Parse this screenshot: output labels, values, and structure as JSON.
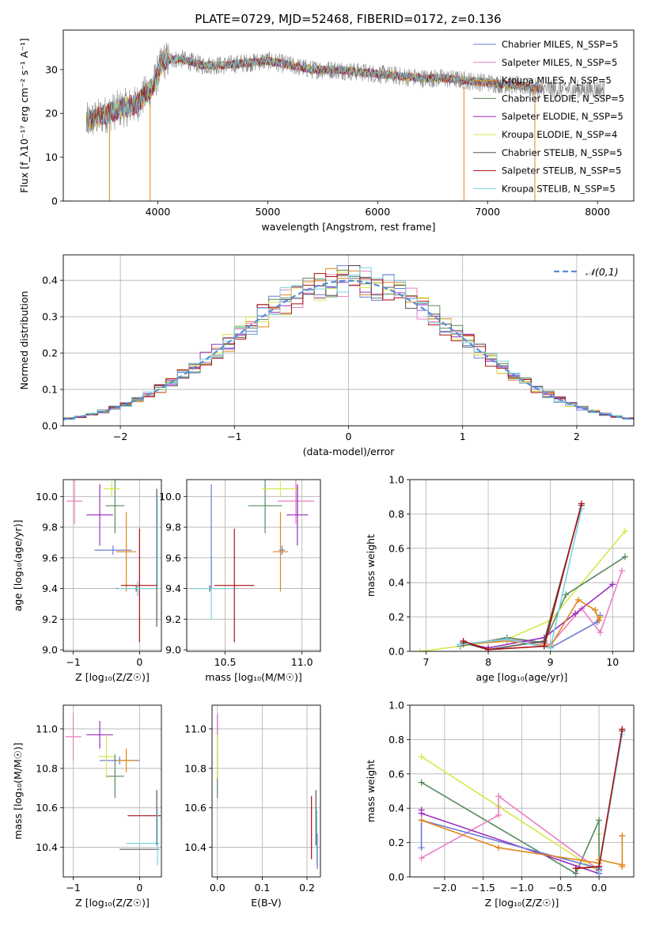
{
  "figure": {
    "title": "PLATE=0729, MJD=52468, FIBERID=0172, z=0.136"
  },
  "chart_data": [
    {
      "id": "spectrum",
      "type": "line",
      "xlabel": "wavelength [Angstrom, rest frame]",
      "ylabel": "Flux [f_λ10⁻¹⁷ erg cm⁻² s⁻¹ A⁻¹]",
      "xlim": [
        3140,
        8330
      ],
      "ylim": [
        0,
        39
      ],
      "xticks": [
        4000,
        5000,
        6000,
        7000,
        8000
      ],
      "yticks": [
        0,
        10,
        20,
        30
      ],
      "grid": false,
      "legend_position": "right",
      "series": [
        {
          "name": "Chabrier MILES, N_SSP=5",
          "color": "#6a7bd6"
        },
        {
          "name": "Salpeter MILES, N_SSP=5",
          "color": "#e87fc4"
        },
        {
          "name": "Kroupa MILES, N_SSP=5",
          "color": "#e0871c"
        },
        {
          "name": "Chabrier ELODIE, N_SSP=5",
          "color": "#5a8a5e"
        },
        {
          "name": "Salpeter ELODIE, N_SSP=5",
          "color": "#9b2dbf"
        },
        {
          "name": "Kroupa ELODIE, N_SSP=4",
          "color": "#d6e84d"
        },
        {
          "name": "Chabrier STELIB, N_SSP=5",
          "color": "#555555"
        },
        {
          "name": "Salpeter STELIB, N_SSP=5",
          "color": "#a81010"
        },
        {
          "name": "Kroupa STELIB, N_SSP=5",
          "color": "#79d2e0"
        }
      ],
      "spectrum_shape": {
        "x": [
          3350,
          3500,
          3650,
          3800,
          3950,
          4050,
          4200,
          4400,
          4600,
          4800,
          5000,
          5200,
          5400,
          5600,
          5800,
          6000,
          6200,
          6400,
          6600,
          6800,
          7000,
          7200,
          7400,
          7500
        ],
        "y": [
          18,
          19.5,
          21,
          22,
          26,
          32,
          32.5,
          31,
          31,
          31.5,
          32,
          31,
          30,
          30,
          29.5,
          29,
          28.5,
          28,
          28,
          27.5,
          27,
          26.5,
          26,
          25.5
        ]
      },
      "raw_data_color": "#888888",
      "raw_data_xrange": [
        3350,
        8070
      ]
    },
    {
      "id": "residuals",
      "type": "histogram",
      "xlabel": "(data-model)/error",
      "ylabel": "Normed distribution",
      "xlim": [
        -2.5,
        2.5
      ],
      "ylim": [
        0,
        0.47
      ],
      "xticks": [
        -2,
        -1,
        0,
        1,
        2
      ],
      "yticks": [
        0.0,
        0.1,
        0.2,
        0.3,
        0.4
      ],
      "grid": true,
      "legend": [
        {
          "name": "𝒩(0,1)",
          "color": "#5b8bd8",
          "style": "dashed"
        }
      ],
      "legend_position": "top-right",
      "bin_width": 0.1,
      "series_colors": [
        "#6a7bd6",
        "#e87fc4",
        "#e0871c",
        "#5a8a5e",
        "#9b2dbf",
        "#d6e84d",
        "#555555",
        "#a81010",
        "#79d2e0"
      ]
    },
    {
      "id": "age_vs_Z",
      "type": "scatter",
      "xlabel": "Z [log₁₀(Z/Z☉)]",
      "ylabel": "age  [log₁₀(age/yr)]",
      "xlim": [
        -1.15,
        0.33
      ],
      "ylim": [
        8.99,
        10.11
      ],
      "xticks": [
        -1,
        0
      ],
      "yticks": [
        9.0,
        9.2,
        9.4,
        9.6,
        9.8,
        10.0
      ],
      "grid": true,
      "points": [
        {
          "color": "#6a7bd6",
          "x": -0.4,
          "y": 9.65,
          "xerr": 0.28,
          "yerr": 0.03
        },
        {
          "color": "#e87fc4",
          "x": -0.98,
          "y": 9.97,
          "xerr": 0.12,
          "yerr": 0.15
        },
        {
          "color": "#e0871c",
          "x": -0.2,
          "y": 9.64,
          "xerr": 0.15,
          "yerr": 0.26
        },
        {
          "color": "#5a8a5e",
          "x": -0.37,
          "y": 9.94,
          "xerr": 0.14,
          "yerr": 0.18
        },
        {
          "color": "#9b2dbf",
          "x": -0.6,
          "y": 9.88,
          "xerr": 0.2,
          "yerr": 0.2
        },
        {
          "color": "#d6e84d",
          "x": -0.42,
          "y": 10.05,
          "xerr": 0.12,
          "yerr": 0.05
        },
        {
          "color": "#555555",
          "x": -0.05,
          "y": 9.4,
          "xerr": 0.3,
          "yerr": 0.02
        },
        {
          "color": "#a81010",
          "x": 0.0,
          "y": 9.42,
          "xerr": 0.28,
          "yerr": 0.37
        },
        {
          "color": "#79d2e0",
          "x": -0.03,
          "y": 9.4,
          "xerr": 0.3,
          "yerr": 0.05
        },
        {
          "color": "#555555",
          "x": 0.26,
          "y": 9.6,
          "xerr": 0.0,
          "yerr": 0.45
        },
        {
          "color": "#79d2e0",
          "x": 0.27,
          "y": 9.7,
          "xerr": 0.0,
          "yerr": 0.3
        }
      ]
    },
    {
      "id": "age_vs_mass",
      "type": "scatter",
      "xlabel": "mass [log₁₀(M/M☉)]",
      "ylabel": "",
      "xlim": [
        10.25,
        11.12
      ],
      "ylim": [
        8.99,
        10.11
      ],
      "xticks": [
        10.5,
        11.0
      ],
      "yticks": [
        9.0,
        9.2,
        9.4,
        9.6,
        9.8,
        10.0
      ],
      "grid": true,
      "points": [
        {
          "color": "#6a7bd6",
          "x": 10.87,
          "y": 9.65,
          "xerr": 0.02,
          "yerr": 0.03
        },
        {
          "color": "#e87fc4",
          "x": 10.96,
          "y": 9.97,
          "xerr": 0.12,
          "yerr": 0.15
        },
        {
          "color": "#e0871c",
          "x": 10.86,
          "y": 9.64,
          "xerr": 0.05,
          "yerr": 0.26
        },
        {
          "color": "#5a8a5e",
          "x": 10.76,
          "y": 9.94,
          "xerr": 0.11,
          "yerr": 0.18
        },
        {
          "color": "#9b2dbf",
          "x": 10.97,
          "y": 9.88,
          "xerr": 0.07,
          "yerr": 0.2
        },
        {
          "color": "#d6e84d",
          "x": 10.86,
          "y": 10.05,
          "xerr": 0.12,
          "yerr": 0.05
        },
        {
          "color": "#555555",
          "x": 10.4,
          "y": 9.4,
          "xerr": 0.13,
          "yerr": 0.02
        },
        {
          "color": "#a81010",
          "x": 10.56,
          "y": 9.42,
          "xerr": 0.13,
          "yerr": 0.37
        },
        {
          "color": "#79d2e0",
          "x": 10.41,
          "y": 9.4,
          "xerr": 0.14,
          "yerr": 0.2
        },
        {
          "color": "#6a7bd6",
          "x": 10.41,
          "y": 9.74,
          "xerr": 0.0,
          "yerr": 0.34
        },
        {
          "color": "#9b2dbf",
          "x": 10.97,
          "y": 9.97,
          "xerr": 0.0,
          "yerr": 0.1
        }
      ]
    },
    {
      "id": "weight_vs_age",
      "type": "line",
      "xlabel": "age  [log₁₀(age/yr)]",
      "ylabel": "mass weight",
      "xlim": [
        6.74,
        10.34
      ],
      "ylim": [
        0,
        1.0
      ],
      "xticks": [
        7,
        8,
        9,
        10
      ],
      "yticks": [
        0.0,
        0.2,
        0.4,
        0.6,
        0.8,
        1.0
      ],
      "grid": true,
      "series": [
        {
          "color": "#d6e84d",
          "x": [
            6.9,
            7.55,
            8.3,
            9.0,
            10.2
          ],
          "y": [
            0.0,
            0.03,
            0.07,
            0.18,
            0.7
          ]
        },
        {
          "color": "#5a8a5e",
          "x": [
            7.55,
            8.3,
            8.9,
            9.25,
            10.2
          ],
          "y": [
            0.03,
            0.08,
            0.05,
            0.33,
            0.55
          ]
        },
        {
          "color": "#e87fc4",
          "x": [
            7.55,
            8.3,
            9.0,
            9.5,
            9.8,
            10.15
          ],
          "y": [
            0.04,
            0.07,
            0.04,
            0.25,
            0.11,
            0.47
          ]
        },
        {
          "color": "#9b2dbf",
          "x": [
            7.6,
            8.0,
            8.9,
            9.4,
            10.0
          ],
          "y": [
            0.05,
            0.02,
            0.08,
            0.22,
            0.39
          ]
        },
        {
          "color": "#6a7bd6",
          "x": [
            7.55,
            8.3,
            9.0,
            9.75,
            9.8
          ],
          "y": [
            0.04,
            0.07,
            0.02,
            0.17,
            0.21
          ]
        },
        {
          "color": "#e0871c",
          "x": [
            7.6,
            8.3,
            9.0,
            9.45,
            9.72,
            9.78,
            9.8
          ],
          "y": [
            0.04,
            0.06,
            0.03,
            0.3,
            0.24,
            0.18,
            0.2
          ]
        },
        {
          "color": "#555555",
          "x": [
            7.6,
            8.0,
            8.9,
            9.5
          ],
          "y": [
            0.05,
            0.01,
            0.06,
            0.85
          ]
        },
        {
          "color": "#79d2e0",
          "x": [
            7.55,
            8.3,
            9.0,
            9.5
          ],
          "y": [
            0.04,
            0.07,
            0.02,
            0.83
          ]
        },
        {
          "color": "#a81010",
          "x": [
            7.6,
            8.0,
            8.9,
            9.5
          ],
          "y": [
            0.06,
            0.01,
            0.03,
            0.86
          ]
        }
      ]
    },
    {
      "id": "mass_vs_Z",
      "type": "scatter",
      "xlabel": "Z [log₁₀(Z/Z☉)]",
      "ylabel": "mass [log₁₀(M/M☉)]",
      "xlim": [
        -1.15,
        0.33
      ],
      "ylim": [
        10.25,
        11.12
      ],
      "xticks": [
        -1,
        0
      ],
      "yticks": [
        10.4,
        10.6,
        10.8,
        11.0
      ],
      "grid": true,
      "points": [
        {
          "color": "#6a7bd6",
          "x": -0.3,
          "y": 10.84,
          "xerr": 0.3,
          "yerr": 0.02
        },
        {
          "color": "#e87fc4",
          "x": -1.0,
          "y": 10.96,
          "xerr": 0.12,
          "yerr": 0.12
        },
        {
          "color": "#e0871c",
          "x": -0.2,
          "y": 10.84,
          "xerr": 0.15,
          "yerr": 0.06
        },
        {
          "color": "#5a8a5e",
          "x": -0.37,
          "y": 10.76,
          "xerr": 0.14,
          "yerr": 0.11
        },
        {
          "color": "#9b2dbf",
          "x": -0.6,
          "y": 10.97,
          "xerr": 0.2,
          "yerr": 0.07
        },
        {
          "color": "#d6e84d",
          "x": -0.5,
          "y": 10.86,
          "xerr": 0.12,
          "yerr": 0.11
        },
        {
          "color": "#555555",
          "x": 0.0,
          "y": 10.39,
          "xerr": 0.3,
          "yerr": 0.0
        },
        {
          "color": "#a81010",
          "x": 0.07,
          "y": 10.56,
          "xerr": 0.25,
          "yerr": 0.0
        },
        {
          "color": "#79d2e0",
          "x": 0.05,
          "y": 10.42,
          "xerr": 0.25,
          "yerr": 0.0
        },
        {
          "color": "#555555",
          "x": 0.26,
          "y": 10.55,
          "xerr": 0.0,
          "yerr": 0.14
        },
        {
          "color": "#79d2e0",
          "x": 0.27,
          "y": 10.45,
          "xerr": 0.0,
          "yerr": 0.14
        }
      ]
    },
    {
      "id": "mass_vs_EBV",
      "type": "scatter",
      "xlabel": "E(B-V)",
      "ylabel": "",
      "xlim": [
        -0.012,
        0.23
      ],
      "ylim": [
        10.25,
        11.12
      ],
      "xticks": [
        0.0,
        0.1,
        0.2
      ],
      "yticks": [
        10.4,
        10.6,
        10.8,
        11.0
      ],
      "grid": true,
      "points": [
        {
          "color": "#9b2dbf",
          "x": 0.0,
          "y": 10.97,
          "xerr": 0.0,
          "yerr": 0.1
        },
        {
          "color": "#e87fc4",
          "x": 0.0,
          "y": 10.96,
          "xerr": 0.0,
          "yerr": 0.12
        },
        {
          "color": "#5a8a5e",
          "x": 0.0,
          "y": 10.76,
          "xerr": 0.0,
          "yerr": 0.11
        },
        {
          "color": "#d6e84d",
          "x": 0.0,
          "y": 10.86,
          "xerr": 0.0,
          "yerr": 0.11
        },
        {
          "color": "#a81010",
          "x": 0.21,
          "y": 10.5,
          "xerr": 0.0,
          "yerr": 0.16
        },
        {
          "color": "#555555",
          "x": 0.22,
          "y": 10.55,
          "xerr": 0.0,
          "yerr": 0.14
        },
        {
          "color": "#79d2e0",
          "x": 0.222,
          "y": 10.45,
          "xerr": 0.0,
          "yerr": 0.14
        },
        {
          "color": "#6a7bd6",
          "x": 0.223,
          "y": 10.38,
          "xerr": 0.0,
          "yerr": 0.09
        }
      ]
    },
    {
      "id": "weight_vs_Z",
      "type": "line",
      "xlabel": "Z [log₁₀(Z/Z☉)]",
      "ylabel": "mass weight",
      "xlim": [
        -2.45,
        0.45
      ],
      "ylim": [
        0,
        1.0
      ],
      "xticks": [
        -2.0,
        -1.5,
        -1.0,
        -0.5,
        0.0
      ],
      "yticks": [
        0.0,
        0.2,
        0.4,
        0.6,
        0.8,
        1.0
      ],
      "grid": true,
      "series": [
        {
          "color": "#d6e84d",
          "x": [
            -2.3,
            -1.3,
            0.0,
            0.0
          ],
          "y": [
            0.7,
            0.41,
            0.03,
            0.25
          ]
        },
        {
          "color": "#5a8a5e",
          "x": [
            -2.3,
            -0.3,
            0.0,
            0.0
          ],
          "y": [
            0.55,
            0.02,
            0.33,
            0.06
          ]
        },
        {
          "color": "#e87fc4",
          "x": [
            -2.3,
            -1.3,
            -1.3,
            0.0
          ],
          "y": [
            0.11,
            0.36,
            0.47,
            0.04
          ]
        },
        {
          "color": "#9b2dbf",
          "x": [
            -2.3,
            -2.3,
            0.0,
            0.0
          ],
          "y": [
            0.39,
            0.37,
            0.02,
            0.04
          ]
        },
        {
          "color": "#6a7bd6",
          "x": [
            -2.3,
            -2.3,
            0.0,
            0.0
          ],
          "y": [
            0.17,
            0.33,
            0.05,
            0.02
          ]
        },
        {
          "color": "#e0871c",
          "x": [
            -2.3,
            -1.3,
            0.0,
            0.0,
            0.3,
            0.3,
            0.3
          ],
          "y": [
            0.33,
            0.17,
            0.08,
            0.1,
            0.07,
            0.24,
            0.06
          ]
        },
        {
          "color": "#555555",
          "x": [
            -0.3,
            0.0,
            0.3
          ],
          "y": [
            0.05,
            0.06,
            0.85
          ]
        },
        {
          "color": "#79d2e0",
          "x": [
            0.0,
            0.0,
            0.3
          ],
          "y": [
            0.03,
            0.05,
            0.83
          ]
        },
        {
          "color": "#a81010",
          "x": [
            -0.3,
            0.0,
            0.3
          ],
          "y": [
            0.05,
            0.06,
            0.86
          ]
        }
      ]
    }
  ]
}
